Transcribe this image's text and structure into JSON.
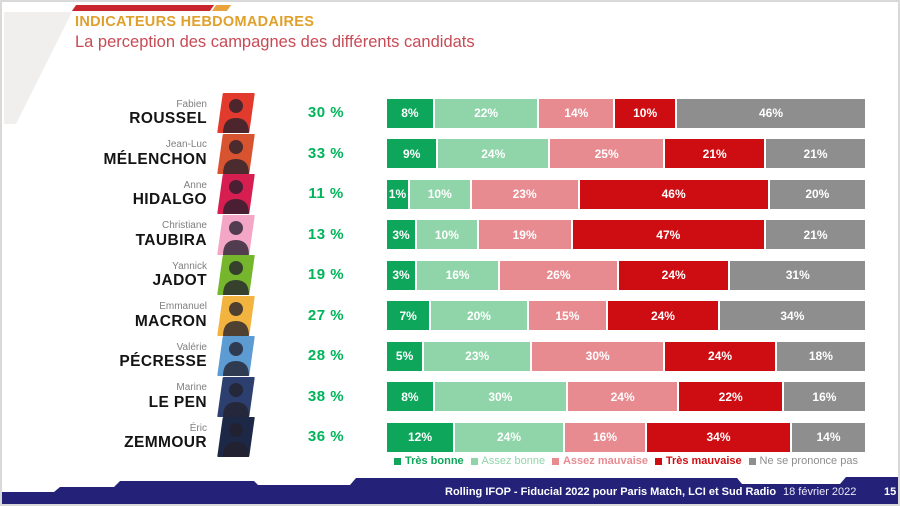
{
  "header": {
    "kicker": "INDICATEURS HEBDOMADAIRES",
    "title": "La perception des campagnes des différents candidats"
  },
  "chart_data": {
    "type": "bar",
    "stacked": true,
    "orientation": "horizontal",
    "unit": "%",
    "title": "La perception des campagnes des différents candidats",
    "categories": [
      "Très bonne",
      "Assez bonne",
      "Assez mauvaise",
      "Très mauvaise",
      "Ne se prononce pas"
    ],
    "colors": [
      "#0ea65a",
      "#90d5a9",
      "#e78b91",
      "#ce0d13",
      "#8e8e8e"
    ],
    "legend_position": "bottom",
    "xlim": [
      0,
      100
    ],
    "rows": [
      {
        "first": "Fabien",
        "last": "ROUSSEL",
        "score": "30 %",
        "photo_color": "#e23b2e",
        "values": [
          8,
          22,
          14,
          10,
          46
        ]
      },
      {
        "first": "Jean-Luc",
        "last": "MÉLENCHON",
        "score": "33 %",
        "photo_color": "#d85430",
        "values": [
          9,
          24,
          25,
          21,
          21
        ]
      },
      {
        "first": "Anne",
        "last": "HIDALGO",
        "score": "11 %",
        "photo_color": "#d61e50",
        "values": [
          1,
          10,
          23,
          46,
          20
        ]
      },
      {
        "first": "Christiane",
        "last": "TAUBIRA",
        "score": "13 %",
        "photo_color": "#f3a6c6",
        "values": [
          3,
          10,
          19,
          47,
          21
        ]
      },
      {
        "first": "Yannick",
        "last": "JADOT",
        "score": "19 %",
        "photo_color": "#76b62d",
        "values": [
          3,
          16,
          26,
          24,
          31
        ]
      },
      {
        "first": "Emmanuel",
        "last": "MACRON",
        "score": "27 %",
        "photo_color": "#f2b33f",
        "values": [
          7,
          20,
          15,
          24,
          34
        ]
      },
      {
        "first": "Valérie",
        "last": "PÉCRESSE",
        "score": "28 %",
        "photo_color": "#5d9bd3",
        "values": [
          5,
          23,
          30,
          24,
          18
        ]
      },
      {
        "first": "Marine",
        "last": "LE PEN",
        "score": "38 %",
        "photo_color": "#2d3f6e",
        "values": [
          8,
          30,
          24,
          22,
          16
        ]
      },
      {
        "first": "Éric",
        "last": "ZEMMOUR",
        "score": "36 %",
        "photo_color": "#1d2746",
        "values": [
          12,
          24,
          16,
          34,
          14
        ]
      }
    ]
  },
  "footer": {
    "source": "Rolling IFOP - Fiducial 2022 pour Paris Match, LCI et Sud Radio",
    "date": "18 février 2022",
    "page": "15"
  }
}
